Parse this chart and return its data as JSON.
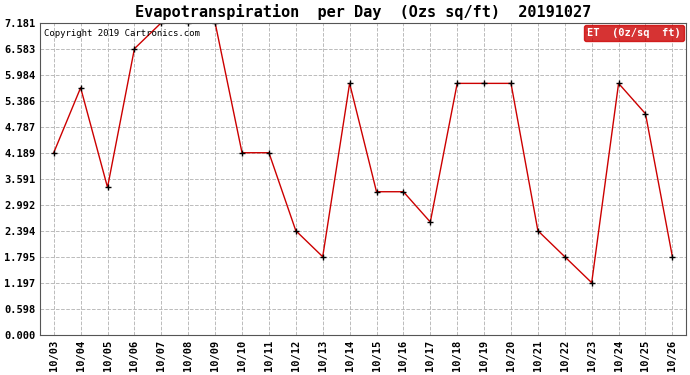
{
  "title": "Evapotranspiration  per Day  (Ozs sq/ft)  20191027",
  "copyright": "Copyright 2019 Cartronics.com",
  "legend_label": "ET  (0z/sq  ft)",
  "x_labels": [
    "10/03",
    "10/04",
    "10/05",
    "10/06",
    "10/07",
    "10/08",
    "10/09",
    "10/10",
    "10/11",
    "10/12",
    "10/13",
    "10/14",
    "10/15",
    "10/16",
    "10/17",
    "10/18",
    "10/19",
    "10/20",
    "10/21",
    "10/22",
    "10/23",
    "10/24",
    "10/25",
    "10/26"
  ],
  "y_values": [
    4.189,
    5.685,
    3.391,
    6.583,
    7.181,
    7.181,
    7.181,
    4.189,
    4.189,
    2.394,
    1.795,
    5.785,
    3.291,
    3.291,
    2.594,
    5.785,
    5.785,
    5.785,
    2.394,
    1.795,
    1.197,
    5.785,
    5.086,
    1.795
  ],
  "y_ticks": [
    0.0,
    0.598,
    1.197,
    1.795,
    2.394,
    2.992,
    3.591,
    4.189,
    4.787,
    5.386,
    5.984,
    6.583,
    7.181
  ],
  "ylim": [
    0.0,
    7.181
  ],
  "line_color": "#cc0000",
  "marker_color": "#000000",
  "background_color": "#ffffff",
  "grid_color": "#bbbbbb",
  "title_fontsize": 11,
  "axis_fontsize": 7.5,
  "copyright_fontsize": 6.5,
  "legend_bg": "#cc0000",
  "legend_text_color": "#ffffff",
  "legend_fontsize": 7.5
}
